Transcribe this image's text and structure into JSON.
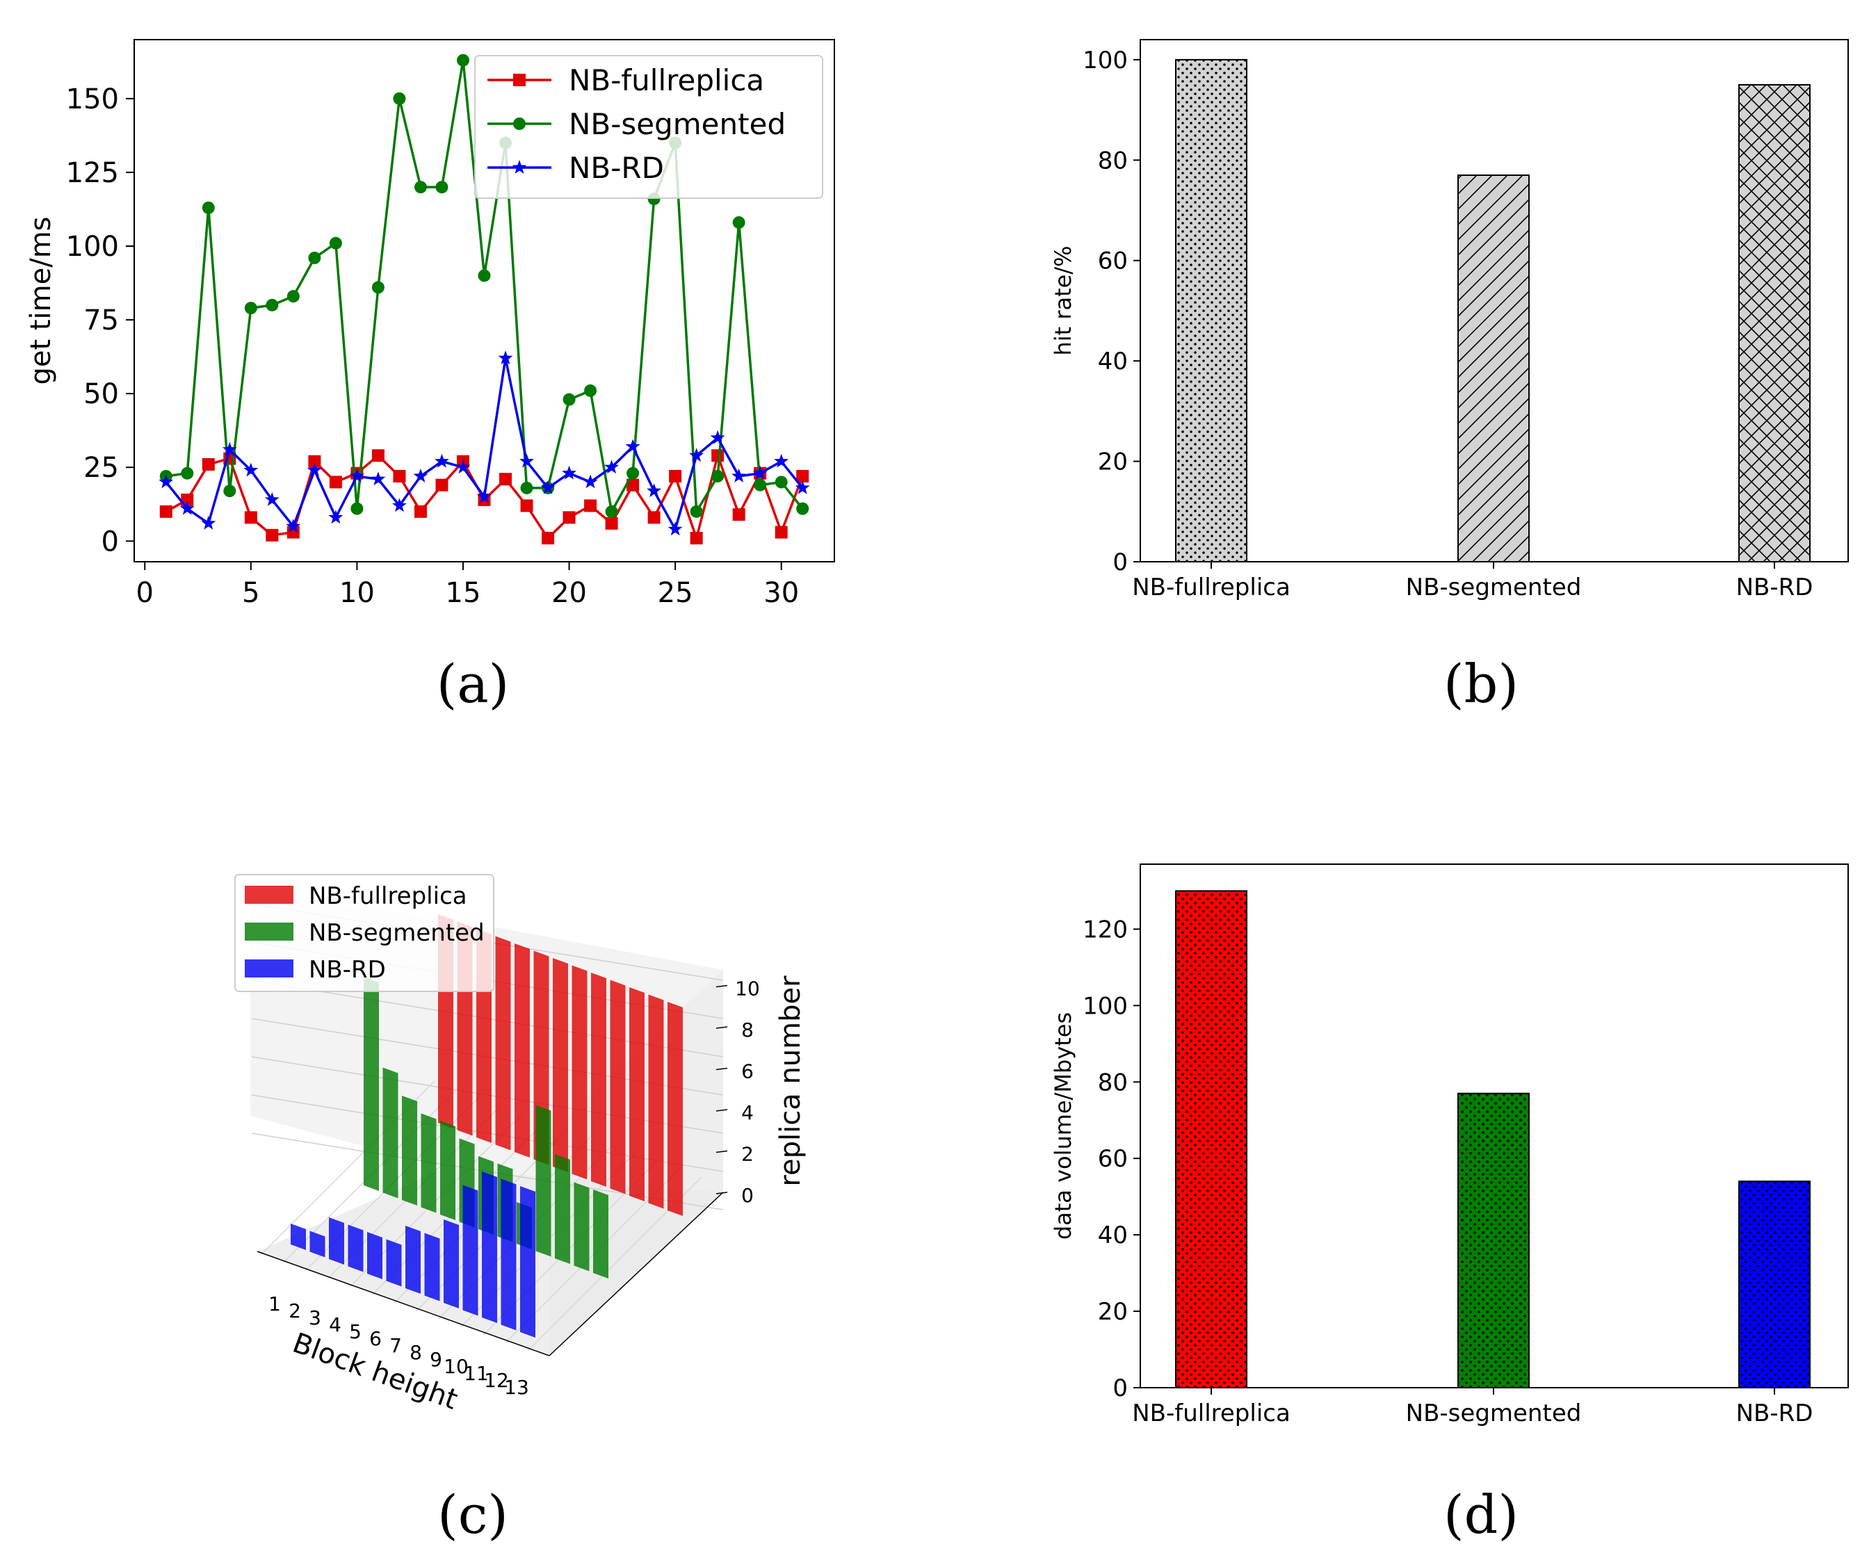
{
  "colors": {
    "fullreplica": "#e00000",
    "segmented": "#007a00",
    "rd": "#0000f0",
    "hatch_bar": "#d3d3d3"
  },
  "chart_data": [
    {
      "type": "line",
      "panel": "a",
      "caption": "(a)",
      "title": "",
      "xlabel": "",
      "ylabel": "get time/ms",
      "xlim": [
        -0.5,
        32.5
      ],
      "ylim": [
        -7,
        170
      ],
      "xticks": [
        0,
        5,
        10,
        15,
        20,
        25,
        30
      ],
      "yticks": [
        0,
        25,
        50,
        75,
        100,
        125,
        150
      ],
      "legend": "top-right",
      "x": [
        1,
        2,
        3,
        4,
        5,
        6,
        7,
        8,
        9,
        10,
        11,
        12,
        13,
        14,
        15,
        16,
        17,
        18,
        19,
        20,
        21,
        22,
        23,
        24,
        25,
        26,
        27,
        28,
        29,
        30,
        31
      ],
      "series": [
        {
          "name": "NB-fullreplica",
          "marker": "square",
          "color_key": "fullreplica",
          "values": [
            10,
            14,
            26,
            28,
            8,
            2,
            3,
            27,
            20,
            23,
            29,
            22,
            10,
            19,
            27,
            14,
            21,
            12,
            1,
            8,
            12,
            6,
            19,
            8,
            22,
            1,
            29,
            9,
            23,
            3,
            22
          ]
        },
        {
          "name": "NB-segmented",
          "marker": "circle",
          "color_key": "segmented",
          "values": [
            22,
            23,
            113,
            17,
            79,
            80,
            83,
            96,
            101,
            11,
            86,
            150,
            120,
            120,
            163,
            90,
            135,
            18,
            18,
            48,
            51,
            10,
            23,
            116,
            135,
            10,
            22,
            108,
            19,
            20,
            11
          ]
        },
        {
          "name": "NB-RD",
          "marker": "star",
          "color_key": "rd",
          "values": [
            20,
            11,
            6,
            31,
            24,
            14,
            5,
            24,
            8,
            22,
            21,
            12,
            22,
            27,
            25,
            15,
            62,
            27,
            18,
            23,
            20,
            25,
            32,
            17,
            4,
            29,
            35,
            22,
            23,
            27,
            18
          ]
        }
      ]
    },
    {
      "type": "bar",
      "panel": "b",
      "caption": "(b)",
      "title": "",
      "xlabel": "",
      "ylabel": "hit rate/%",
      "ylim": [
        0,
        104
      ],
      "yticks": [
        0,
        20,
        40,
        60,
        80,
        100
      ],
      "categories": [
        "NB-fullreplica",
        "NB-segmented",
        "NB-RD"
      ],
      "values": [
        100,
        77,
        95
      ],
      "patterns": [
        "dots",
        "diagonal",
        "crosshatch"
      ]
    },
    {
      "type": "bar3d",
      "panel": "c",
      "caption": "(c)",
      "xlabel": "Block height",
      "zlabel": "replica number",
      "xticks": [
        "1",
        "2",
        "3",
        "4",
        "5",
        "6",
        "7",
        "8",
        "9",
        "10",
        "11",
        "12",
        "13"
      ],
      "zticks": [
        "0",
        "2",
        "4",
        "6",
        "8",
        "10"
      ],
      "zlim": [
        0,
        10
      ],
      "legend": "top-left",
      "series": [
        {
          "name": "NB-fullreplica",
          "color_key": "fullreplica",
          "values": [
            10,
            10,
            10,
            10,
            10,
            10,
            10,
            10,
            10,
            10,
            10,
            10,
            10
          ]
        },
        {
          "name": "NB-segmented",
          "color_key": "segmented",
          "values": [
            10,
            6,
            5,
            4.5,
            4.5,
            4,
            3.5,
            3.5,
            2,
            7,
            5,
            4,
            4
          ]
        },
        {
          "name": "NB-RD",
          "color_key": "rd",
          "values": [
            1,
            1,
            2,
            2,
            2,
            2,
            3,
            3,
            4,
            6,
            7,
            7,
            7
          ]
        }
      ]
    },
    {
      "type": "bar",
      "panel": "d",
      "caption": "(d)",
      "title": "",
      "xlabel": "",
      "ylabel": "data volume/Mbytes",
      "ylim": [
        0,
        137
      ],
      "yticks": [
        0,
        20,
        40,
        60,
        80,
        100,
        120
      ],
      "categories": [
        "NB-fullreplica",
        "NB-segmented",
        "NB-RD"
      ],
      "values": [
        130,
        77,
        54
      ],
      "color_keys": [
        "fullreplica",
        "segmented",
        "rd"
      ],
      "patterns": [
        "dots",
        "dots",
        "dots"
      ]
    }
  ]
}
